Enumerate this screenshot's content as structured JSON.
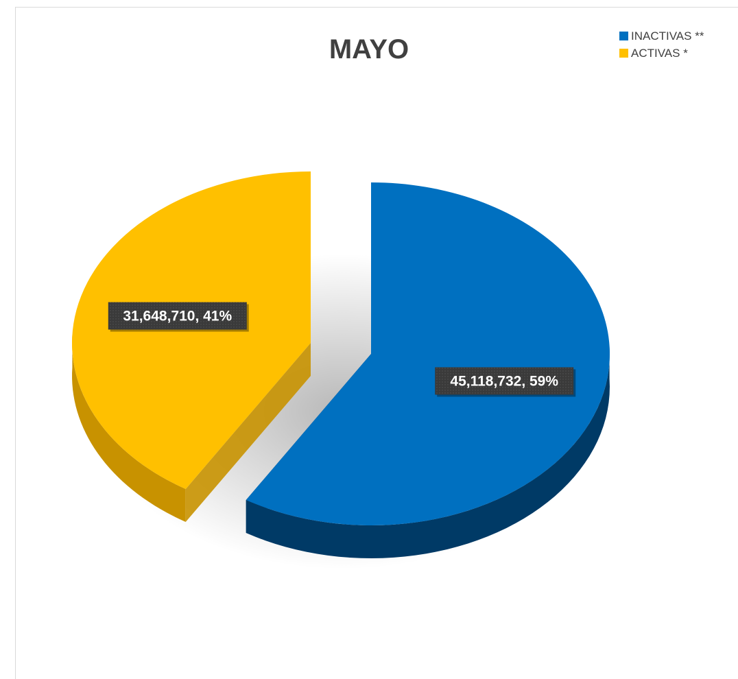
{
  "chart_data": {
    "type": "pie",
    "title": "MAYO",
    "legend_position": "top-right",
    "slices": [
      {
        "name": "INACTIVAS **",
        "value": 45118732,
        "percent": 59,
        "label": "45,118,732, 59%",
        "color": "#0070c0",
        "side_color": "#003a66"
      },
      {
        "name": "ACTIVAS *",
        "value": 31648710,
        "percent": 41,
        "label": "31,648,710, 41%",
        "color": "#ffc000",
        "side_color": "#c89200"
      }
    ]
  },
  "legend": {
    "items": [
      {
        "label": "INACTIVAS **",
        "color": "#0070c0"
      },
      {
        "label": "ACTIVAS *",
        "color": "#ffc000"
      }
    ]
  }
}
